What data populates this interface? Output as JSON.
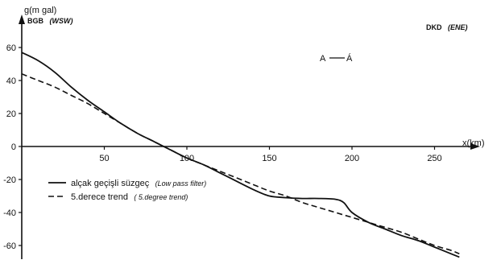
{
  "chart_data": {
    "type": "line",
    "ylabel": "g(m gal)",
    "xlabel": "x(km)",
    "left_label": {
      "abbr": "BGB",
      "dir": "(WSW)"
    },
    "right_label": {
      "abbr": "DKD",
      "dir": "(ENE)"
    },
    "profile_label": {
      "a": "A",
      "b": "Á"
    },
    "xlim": [
      0,
      270
    ],
    "ylim": [
      -65,
      65
    ],
    "x_ticks": [
      50,
      100,
      150,
      200,
      250
    ],
    "y_ticks": [
      60,
      40,
      20,
      0,
      -20,
      -40,
      -60
    ],
    "series": [
      {
        "name": "alçak geçişli süzgeç",
        "name_en": "(Low pass filter)",
        "style": "solid",
        "x": [
          0,
          10,
          20,
          30,
          40,
          50,
          60,
          70,
          80,
          90,
          100,
          110,
          120,
          130,
          140,
          150,
          160,
          170,
          180,
          190,
          195,
          200,
          210,
          220,
          230,
          240,
          250,
          260,
          265
        ],
        "y": [
          57,
          52,
          45,
          36,
          28,
          21,
          14,
          8,
          3,
          -2,
          -7,
          -11,
          -16,
          -21,
          -26,
          -30,
          -31,
          -31.5,
          -31.5,
          -32,
          -34,
          -40,
          -46,
          -50,
          -54,
          -57,
          -61,
          -65,
          -67
        ]
      },
      {
        "name": "5.derece trend",
        "name_en": "(5.degree trend)",
        "style": "dashed",
        "x": [
          0,
          10,
          20,
          30,
          40,
          50,
          60,
          70,
          80,
          90,
          100,
          110,
          120,
          130,
          140,
          150,
          160,
          170,
          180,
          190,
          200,
          210,
          220,
          230,
          240,
          250,
          260,
          265
        ],
        "y": [
          44,
          40,
          36,
          31,
          26,
          20,
          14,
          8,
          3,
          -2,
          -7,
          -11,
          -15,
          -19,
          -23,
          -27,
          -30,
          -34,
          -37,
          -40,
          -43,
          -46,
          -49,
          -52,
          -56,
          -60,
          -63,
          -65
        ]
      }
    ],
    "legend": [
      {
        "label": "alçak geçişli süzgeç",
        "label_en": "(Low pass filter)"
      },
      {
        "label": "5.derece trend",
        "label_en": "( 5.degree trend)"
      }
    ],
    "grid": false,
    "legend_position": "bottom-left"
  }
}
